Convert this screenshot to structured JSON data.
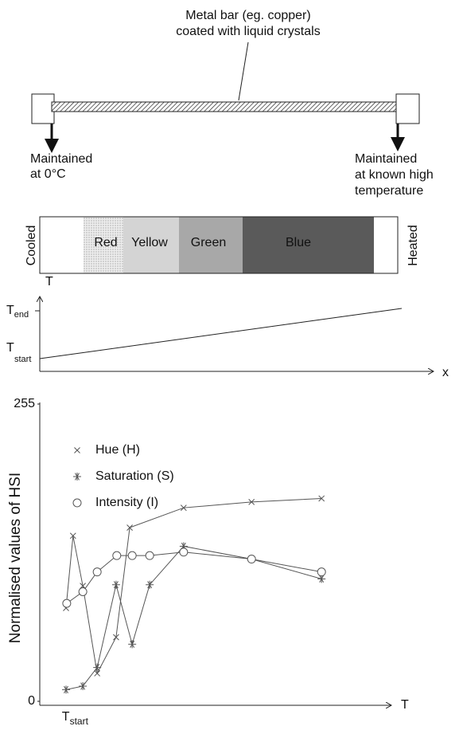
{
  "diagram": {
    "bar_label": [
      "Metal bar (eg. copper)",
      "coated with liquid crystals"
    ],
    "left_label": [
      "Maintained",
      "at 0°C"
    ],
    "right_label": [
      "Maintained",
      "at known high",
      "temperature"
    ],
    "strip": {
      "left": "Cooled",
      "right": "Heated",
      "colors": [
        "Red",
        "Yellow",
        "Green",
        "Blue"
      ]
    },
    "profile": {
      "y_label": "T",
      "t_end": {
        "main": "T",
        "sub": "end"
      },
      "t_start": {
        "main": "T",
        "sub": "start"
      },
      "x_label": "x"
    }
  },
  "chart_data": {
    "type": "line",
    "y_label": "Normalised values of HSI",
    "x_label": "T",
    "xlim": [
      0,
      100
    ],
    "ylim": [
      0,
      255
    ],
    "yticks": [
      0,
      255
    ],
    "xticks": [
      {
        "value": 9.5,
        "label": {
          "main": "T",
          "sub": "start"
        }
      }
    ],
    "series": [
      {
        "name": "Hue (H)",
        "marker": "cross",
        "color": "#555",
        "x": [
          7.5,
          9.5,
          12.3,
          16.4,
          21.8,
          25.7,
          41.1,
          60.5,
          80.5
        ],
        "values": [
          80,
          142,
          99,
          24,
          55,
          149,
          166,
          171,
          174
        ]
      },
      {
        "name": "Saturation (S)",
        "marker": "asterisk",
        "color": "#555",
        "x": [
          7.5,
          12.3,
          16.4,
          21.8,
          26.4,
          31.4,
          41.1,
          60.5,
          80.5
        ],
        "values": [
          10,
          13,
          29,
          100,
          49,
          100,
          133,
          122,
          105
        ]
      },
      {
        "name": "Intensity (I)",
        "marker": "circle",
        "color": "#555",
        "x": [
          7.7,
          12.3,
          16.4,
          22.0,
          26.4,
          31.4,
          41.1,
          60.5,
          80.5
        ],
        "values": [
          84,
          94,
          111,
          125,
          125,
          125,
          128,
          122,
          111
        ]
      }
    ]
  }
}
